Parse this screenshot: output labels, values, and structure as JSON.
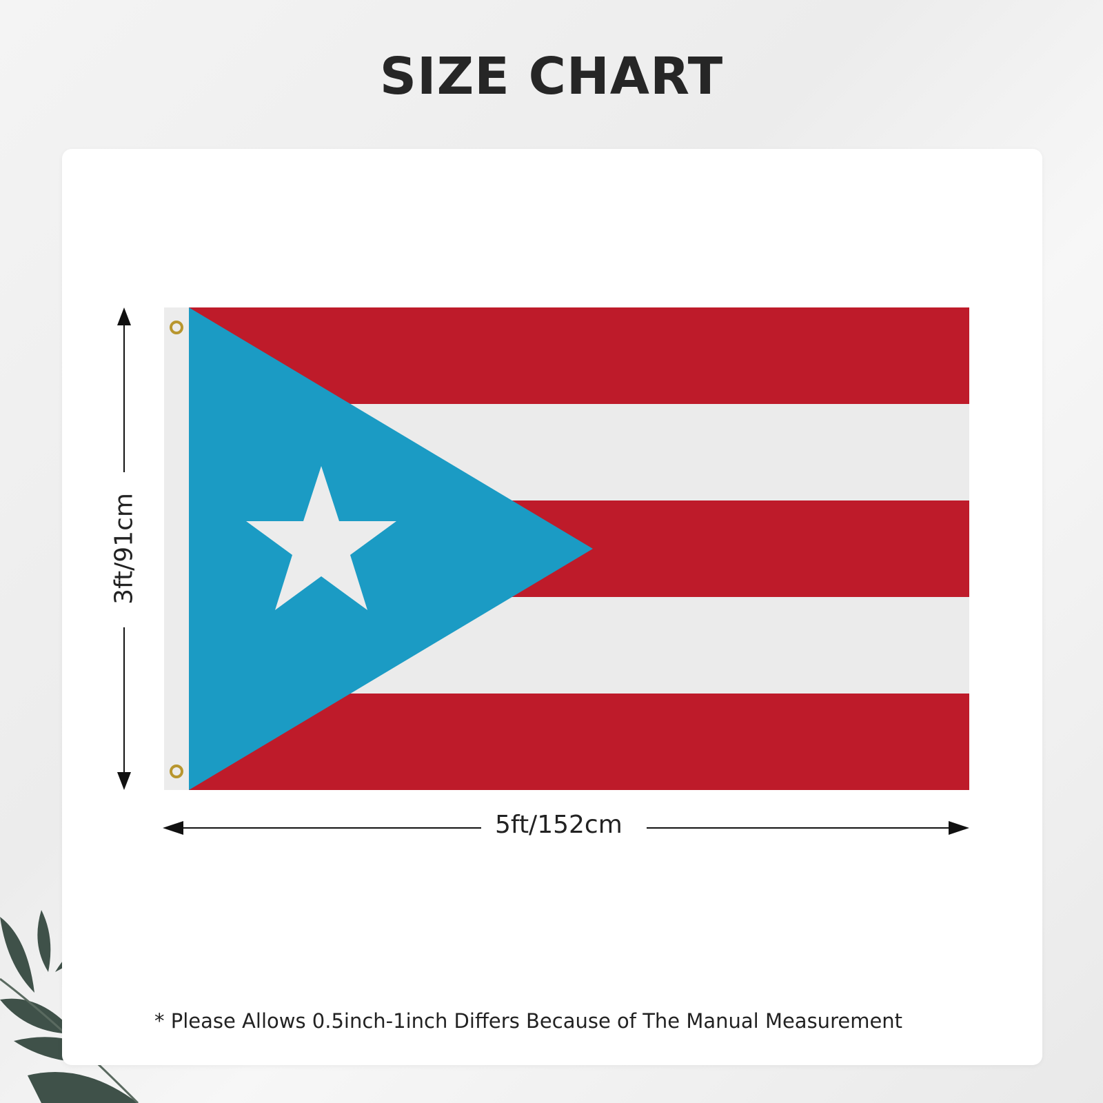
{
  "title": "SIZE CHART",
  "dimensions": {
    "height_label": "3ft/91cm",
    "width_label": "5ft/152cm"
  },
  "note": "* Please Allows 0.5inch-1inch Differs Because of The Manual Measurement",
  "colors": {
    "flag_red": "#be1b2a",
    "flag_white": "#ebebeb",
    "flag_blue": "#1b9bc4",
    "grommet": "#b8962e"
  }
}
